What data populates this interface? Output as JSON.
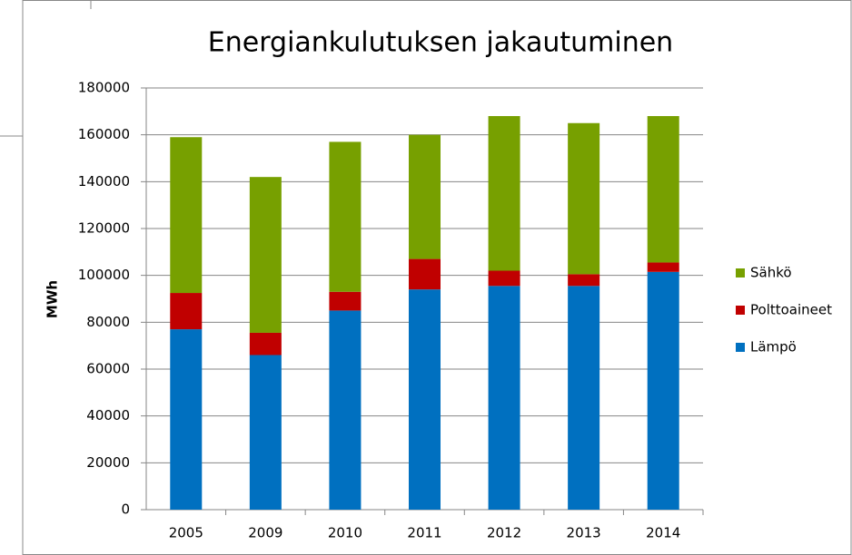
{
  "chart_data": {
    "type": "stacked_bar",
    "title": "Energiankulutuksen jakautuminen",
    "y_label": "MWh",
    "categories": [
      "2005",
      "2009",
      "2010",
      "2011",
      "2012",
      "2013",
      "2014"
    ],
    "series": [
      {
        "name": "Lämpö",
        "color": "#0070c0",
        "values": [
          77000,
          66000,
          85000,
          94000,
          95500,
          95500,
          101500
        ]
      },
      {
        "name": "Polttoaineet",
        "color": "#c00000",
        "values": [
          15500,
          9500,
          8000,
          13000,
          6500,
          5000,
          4000
        ]
      },
      {
        "name": "Sähkö",
        "color": "#77a000",
        "values": [
          66500,
          66500,
          64000,
          53000,
          66000,
          64500,
          62500
        ]
      }
    ],
    "ylim": [
      0,
      180000
    ],
    "yticks": [
      0,
      20000,
      40000,
      60000,
      80000,
      100000,
      120000,
      140000,
      160000,
      180000
    ],
    "grid": true,
    "legend": "right"
  }
}
